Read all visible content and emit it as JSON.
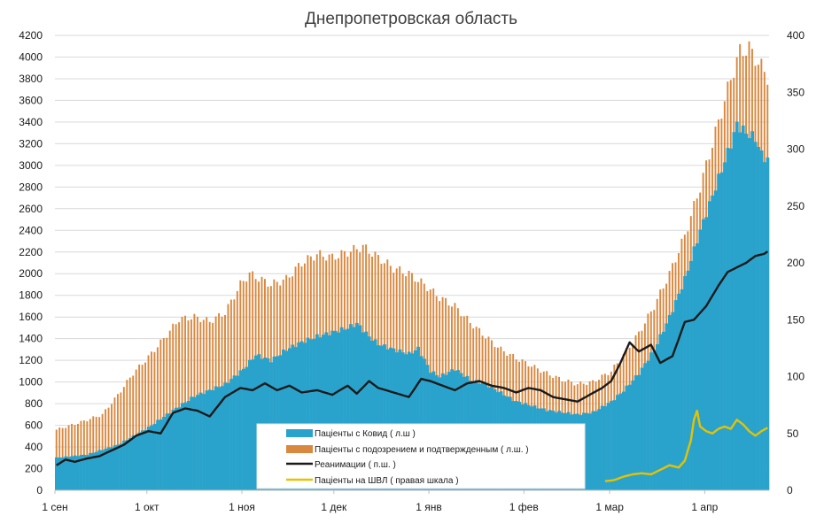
{
  "chart_data": {
    "type": "bar",
    "title": "Днепропетровская область",
    "colors": {
      "covid": "#2aa3cc",
      "suspected": "#d9883f",
      "icu": "#1a1a1a",
      "ventilator": "#e6c200",
      "grid": "#d9d9d9",
      "axis": "#bfbfbf"
    },
    "left_axis": {
      "ylim": [
        0,
        4200
      ],
      "ticks": [
        "0",
        "200",
        "400",
        "600",
        "800",
        "1000",
        "1200",
        "1400",
        "1600",
        "1800",
        "2000",
        "2200",
        "2400",
        "2600",
        "2800",
        "3000",
        "3200",
        "3400",
        "3600",
        "3800",
        "4000",
        "4200"
      ]
    },
    "right_axis": {
      "ylim": [
        0,
        400
      ],
      "ticks": [
        "0",
        "50",
        "100",
        "150",
        "200",
        "250",
        "300",
        "350",
        "400"
      ]
    },
    "x_axis": {
      "num_days": 233,
      "tick_labels": [
        "1 сен",
        "1 окт",
        "1 ноя",
        "1 дек",
        "1 янв",
        "1 фев",
        "1 мар",
        "1 апр"
      ],
      "tick_days": [
        0,
        30,
        61,
        91,
        122,
        153,
        181,
        212
      ]
    },
    "legend": {
      "position": "bottom-center",
      "entries": [
        "Пацiенты с Ковид ( л.ш )",
        "Пацiенты с подозрением и подтвержденным ( л.ш. )",
        "Реанимации ( п.ш. )",
        "Пацiенты на ШВЛ ( правая шкала )"
      ]
    },
    "series": [
      {
        "name": "Пацiенты с Ковид ( л.ш )",
        "type": "bar",
        "axis": "left",
        "points": [
          [
            0,
            300
          ],
          [
            10,
            330
          ],
          [
            20,
            420
          ],
          [
            30,
            580
          ],
          [
            37,
            720
          ],
          [
            45,
            870
          ],
          [
            55,
            980
          ],
          [
            61,
            1120
          ],
          [
            65,
            1250
          ],
          [
            70,
            1200
          ],
          [
            75,
            1300
          ],
          [
            80,
            1370
          ],
          [
            85,
            1420
          ],
          [
            90,
            1460
          ],
          [
            95,
            1500
          ],
          [
            98,
            1540
          ],
          [
            102,
            1420
          ],
          [
            105,
            1350
          ],
          [
            110,
            1300
          ],
          [
            115,
            1260
          ],
          [
            118,
            1310
          ],
          [
            122,
            1100
          ],
          [
            125,
            1050
          ],
          [
            130,
            1120
          ],
          [
            135,
            1020
          ],
          [
            140,
            980
          ],
          [
            145,
            900
          ],
          [
            150,
            820
          ],
          [
            155,
            780
          ],
          [
            160,
            740
          ],
          [
            165,
            720
          ],
          [
            170,
            700
          ],
          [
            175,
            720
          ],
          [
            181,
            820
          ],
          [
            185,
            920
          ],
          [
            190,
            1080
          ],
          [
            195,
            1300
          ],
          [
            200,
            1600
          ],
          [
            205,
            1950
          ],
          [
            210,
            2400
          ],
          [
            215,
            2800
          ],
          [
            220,
            3200
          ],
          [
            222,
            3380
          ],
          [
            225,
            3300
          ],
          [
            228,
            3250
          ],
          [
            230,
            3100
          ],
          [
            232,
            3050
          ]
        ]
      },
      {
        "name": "Пацiенты с подозрением и подтвержденным ( л.ш. )",
        "type": "bar",
        "axis": "left",
        "points": [
          [
            0,
            560
          ],
          [
            8,
            630
          ],
          [
            15,
            700
          ],
          [
            20,
            880
          ],
          [
            25,
            1080
          ],
          [
            30,
            1230
          ],
          [
            35,
            1400
          ],
          [
            40,
            1580
          ],
          [
            45,
            1600
          ],
          [
            50,
            1560
          ],
          [
            55,
            1640
          ],
          [
            60,
            1900
          ],
          [
            63,
            2000
          ],
          [
            70,
            1900
          ],
          [
            75,
            1950
          ],
          [
            80,
            2100
          ],
          [
            85,
            2180
          ],
          [
            90,
            2150
          ],
          [
            95,
            2200
          ],
          [
            100,
            2250
          ],
          [
            105,
            2150
          ],
          [
            110,
            2050
          ],
          [
            115,
            2000
          ],
          [
            120,
            1900
          ],
          [
            125,
            1780
          ],
          [
            130,
            1700
          ],
          [
            135,
            1550
          ],
          [
            140,
            1420
          ],
          [
            145,
            1300
          ],
          [
            150,
            1220
          ],
          [
            155,
            1150
          ],
          [
            160,
            1080
          ],
          [
            165,
            1020
          ],
          [
            170,
            980
          ],
          [
            175,
            1000
          ],
          [
            181,
            1100
          ],
          [
            185,
            1250
          ],
          [
            190,
            1450
          ],
          [
            195,
            1700
          ],
          [
            200,
            2000
          ],
          [
            205,
            2350
          ],
          [
            210,
            2800
          ],
          [
            215,
            3300
          ],
          [
            220,
            3800
          ],
          [
            223,
            4050
          ],
          [
            226,
            4080
          ],
          [
            229,
            3950
          ],
          [
            232,
            3820
          ]
        ]
      },
      {
        "name": "Реанимации ( п.ш. )",
        "type": "line",
        "axis": "right",
        "points": [
          [
            0,
            22
          ],
          [
            3,
            27
          ],
          [
            6,
            25
          ],
          [
            10,
            28
          ],
          [
            14,
            30
          ],
          [
            18,
            35
          ],
          [
            22,
            40
          ],
          [
            26,
            48
          ],
          [
            30,
            52
          ],
          [
            34,
            50
          ],
          [
            38,
            68
          ],
          [
            42,
            72
          ],
          [
            46,
            70
          ],
          [
            50,
            65
          ],
          [
            55,
            82
          ],
          [
            60,
            90
          ],
          [
            64,
            88
          ],
          [
            68,
            94
          ],
          [
            72,
            88
          ],
          [
            76,
            92
          ],
          [
            80,
            86
          ],
          [
            85,
            88
          ],
          [
            90,
            84
          ],
          [
            95,
            92
          ],
          [
            98,
            85
          ],
          [
            102,
            96
          ],
          [
            105,
            90
          ],
          [
            110,
            86
          ],
          [
            115,
            82
          ],
          [
            119,
            98
          ],
          [
            122,
            96
          ],
          [
            126,
            92
          ],
          [
            130,
            88
          ],
          [
            134,
            94
          ],
          [
            138,
            96
          ],
          [
            142,
            92
          ],
          [
            146,
            90
          ],
          [
            150,
            86
          ],
          [
            154,
            90
          ],
          [
            158,
            88
          ],
          [
            162,
            82
          ],
          [
            166,
            80
          ],
          [
            170,
            78
          ],
          [
            174,
            84
          ],
          [
            178,
            90
          ],
          [
            181,
            96
          ],
          [
            184,
            112
          ],
          [
            187,
            130
          ],
          [
            190,
            122
          ],
          [
            194,
            128
          ],
          [
            197,
            112
          ],
          [
            201,
            118
          ],
          [
            205,
            148
          ],
          [
            208,
            150
          ],
          [
            212,
            162
          ],
          [
            216,
            180
          ],
          [
            219,
            192
          ],
          [
            222,
            196
          ],
          [
            225,
            200
          ],
          [
            228,
            206
          ],
          [
            231,
            208
          ],
          [
            232,
            210
          ]
        ]
      },
      {
        "name": "Пацiенты на ШВЛ ( правая шкала )",
        "type": "line",
        "axis": "right",
        "points": [
          [
            179,
            8
          ],
          [
            182,
            9
          ],
          [
            185,
            12
          ],
          [
            188,
            14
          ],
          [
            191,
            15
          ],
          [
            194,
            14
          ],
          [
            197,
            18
          ],
          [
            200,
            22
          ],
          [
            203,
            20
          ],
          [
            205,
            26
          ],
          [
            207,
            44
          ],
          [
            208,
            62
          ],
          [
            209,
            70
          ],
          [
            210,
            56
          ],
          [
            212,
            52
          ],
          [
            214,
            50
          ],
          [
            216,
            54
          ],
          [
            218,
            56
          ],
          [
            220,
            54
          ],
          [
            222,
            62
          ],
          [
            224,
            58
          ],
          [
            226,
            52
          ],
          [
            228,
            48
          ],
          [
            230,
            52
          ],
          [
            232,
            55
          ]
        ]
      }
    ]
  }
}
